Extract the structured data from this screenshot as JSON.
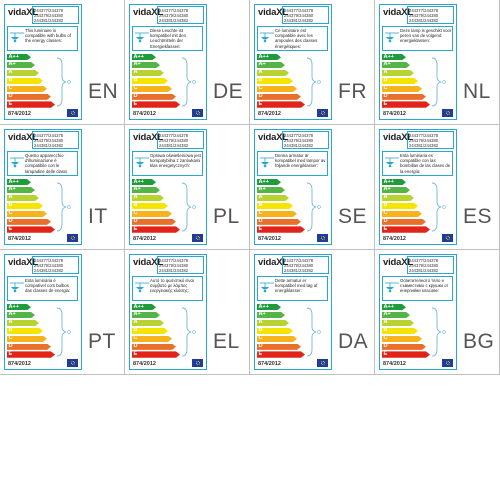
{
  "brand": "vidaXL",
  "product_codes": [
    "244377/244378",
    "244379/244380",
    "244381/244382"
  ],
  "regulation": "874/2012",
  "energy_classes": [
    "A++",
    "A+",
    "A",
    "B",
    "C",
    "D",
    "E"
  ],
  "class_colors": [
    "#1e9c3c",
    "#54b445",
    "#b8d232",
    "#f5e400",
    "#f6b31b",
    "#e8702a",
    "#e2231a"
  ],
  "panels": [
    {
      "code": "EN",
      "text": "This luminaire is compatible with bulbs of the energy classes:"
    },
    {
      "code": "DE",
      "text": "Diese Leuchte ist kompatibel mit den Leuchtmitteln der Energieklassen:"
    },
    {
      "code": "FR",
      "text": "Ce luminaire est compatible avec les ampoules des classes énergétiques:"
    },
    {
      "code": "NL",
      "text": "Deze lamp is geschikt voor peren van de volgend energieklassen:"
    },
    {
      "code": "IT",
      "text": "Questo apparecchio d'illuminazione è compatibile con le lampadine delle classi energetiche:"
    },
    {
      "code": "PL",
      "text": "Oprawa oświetleniowa jest kompatybilna z żarówkami klas energetycznych:"
    },
    {
      "code": "SE",
      "text": "Denna armatur är kompatibel med lampor av följande energiklasser:"
    },
    {
      "code": "ES",
      "text": "Esta luminaria es compatible con las bombillas de las clases de la energía:"
    },
    {
      "code": "PT",
      "text": "Esta luminária é compatível com bulbos das classes de energia:"
    },
    {
      "code": "EL",
      "text": "Αυτό το φωτιστικό είναι συμβατό με λάμπες ενεργειακής κλάσης:"
    },
    {
      "code": "DA",
      "text": "Dette armatur er kompatibel med løg af energiklasser:"
    },
    {
      "code": "BG",
      "text": "Осветителното тяло е съвместимо с крушки от енергийни класове:"
    }
  ]
}
